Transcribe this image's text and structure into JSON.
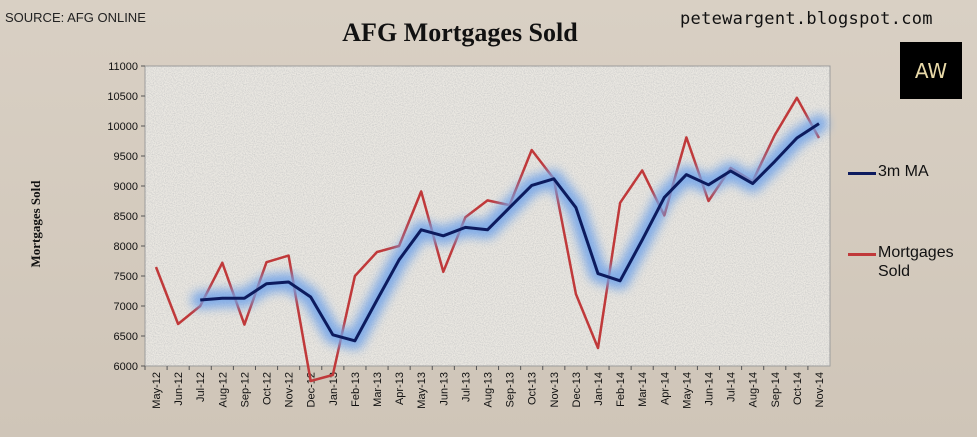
{
  "source_text": "SOURCE: AFG ONLINE",
  "blog_text": "petewargent.blogspot.com",
  "logo_text": "AW",
  "chart_data": {
    "type": "line",
    "title": "AFG Mortgages Sold",
    "xlabel": "",
    "ylabel": "Mortgages Sold",
    "ylim": [
      6000,
      11000
    ],
    "yticks": [
      "6000",
      "6500",
      "7000",
      "7500",
      "8000",
      "8500",
      "9000",
      "9500",
      "10000",
      "10500",
      "11000"
    ],
    "ytick_values": [
      6000,
      6500,
      7000,
      7500,
      8000,
      8500,
      9000,
      9500,
      10000,
      10500,
      11000
    ],
    "categories": [
      "May-12",
      "Jun-12",
      "Jul-12",
      "Aug-12",
      "Sep-12",
      "Oct-12",
      "Nov-12",
      "Dec-12",
      "Jan-13",
      "Feb-13",
      "Mar-13",
      "Apr-13",
      "May-13",
      "Jun-13",
      "Jul-13",
      "Aug-13",
      "Sep-13",
      "Oct-13",
      "Nov-13",
      "Dec-13",
      "Jan-14",
      "Feb-14",
      "Mar-14",
      "Apr-14",
      "May-14",
      "Jun-14",
      "Jul-14",
      "Aug-14",
      "Sep-14",
      "Oct-14",
      "Nov-14"
    ],
    "grid": false,
    "legend_position": "right",
    "series": [
      {
        "name": "3m MA",
        "color": "#0d1b5e",
        "glow": true,
        "values": [
          null,
          null,
          7100,
          7130,
          7130,
          7370,
          7400,
          7150,
          6520,
          6420,
          7100,
          7770,
          8270,
          8170,
          8310,
          8270,
          8640,
          9010,
          9120,
          8640,
          7540,
          7420,
          8100,
          8810,
          9190,
          9020,
          9250,
          9040,
          9410,
          9800,
          10040
        ]
      },
      {
        "name": "Mortgages\nSold",
        "color": "#c0393a",
        "glow": false,
        "values": [
          7650,
          6700,
          7000,
          7720,
          6690,
          7730,
          7840,
          5750,
          5850,
          7500,
          7900,
          8000,
          8910,
          7570,
          8480,
          8760,
          8680,
          9600,
          9120,
          7200,
          6300,
          8720,
          9260,
          8510,
          9810,
          8750,
          9300,
          9080,
          9850,
          10470,
          9800
        ]
      }
    ]
  }
}
